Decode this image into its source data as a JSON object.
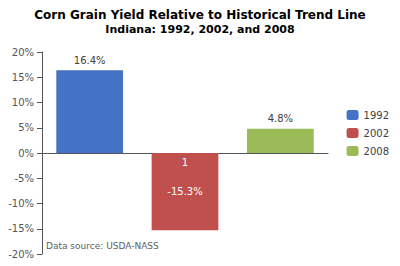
{
  "chart_data": {
    "type": "bar",
    "title": "Corn Grain Yield Relative to Historical Trend Line",
    "subtitle": "Indiana: 1992, 2002, and 2008",
    "categories": [
      "1992",
      "2002",
      "2008"
    ],
    "values": [
      16.4,
      -15.3,
      4.8
    ],
    "value_labels": [
      "16.4%",
      "-15.3%",
      "4.8%"
    ],
    "data_labels": true,
    "colors": [
      "#4472C4",
      "#C0504D",
      "#9BBB59"
    ],
    "ylim": [
      -20,
      20
    ],
    "yticks": [
      {
        "value": -20,
        "label": "-20%"
      },
      {
        "value": -15,
        "label": "-15%"
      },
      {
        "value": -10,
        "label": "-10%"
      },
      {
        "value": -5,
        "label": "-5%"
      },
      {
        "value": 0,
        "label": "0%"
      },
      {
        "value": 5,
        "label": "5%"
      },
      {
        "value": 10,
        "label": "10%"
      },
      {
        "value": 15,
        "label": "15%"
      },
      {
        "value": 20,
        "label": "20%"
      }
    ],
    "grid": false,
    "legend": "right",
    "tick_labels": "y",
    "annotations": [
      {
        "text": "1",
        "category": "2002"
      },
      {
        "text": "Data source: USDA-NASS"
      }
    ]
  }
}
